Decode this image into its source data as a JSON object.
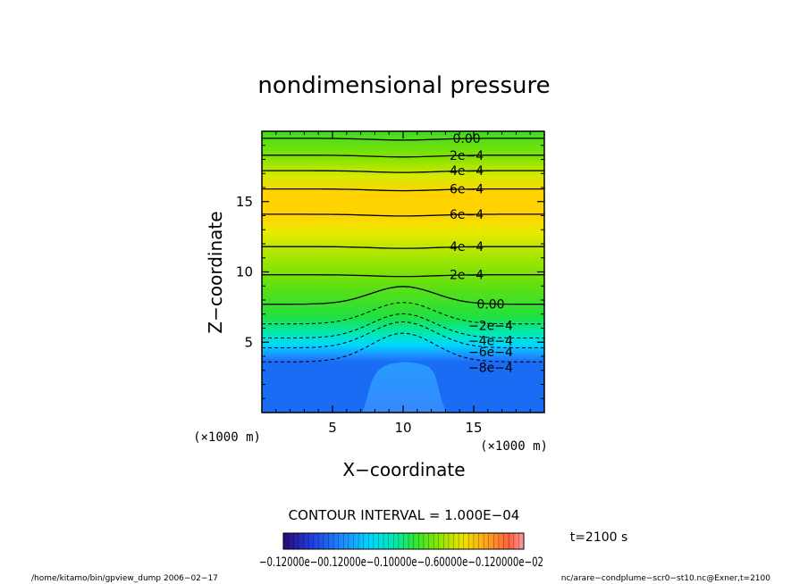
{
  "chart_data": {
    "type": "heatmap",
    "title": "nondimensional pressure",
    "xlabel": "X−coordinate",
    "ylabel": "Z−coordinate",
    "x_unit": "(×1000 m)",
    "y_unit": "(×1000 m)",
    "xlim": [
      0,
      20
    ],
    "ylim": [
      0,
      20
    ],
    "x_ticks": [
      5,
      10,
      15
    ],
    "y_ticks": [
      5,
      10,
      15
    ],
    "contour_interval": "CONTOUR INTERVAL = 1.000E−04",
    "time_label": "t=2100 s",
    "colorbar_labels": "−0.12000e−00.12000e−0.10000e−0.60000e−0.120000e−02",
    "contours": [
      {
        "z": 19.5,
        "label": "0.00"
      },
      {
        "z": 18.3,
        "label": "2e−4"
      },
      {
        "z": 17.2,
        "label": "4e−4"
      },
      {
        "z": 15.9,
        "label": "6e−4"
      },
      {
        "z": 14.1,
        "label": "6e−4"
      },
      {
        "z": 11.8,
        "label": "4e−4"
      },
      {
        "z": 9.8,
        "label": "2e−4"
      },
      {
        "z": 7.7,
        "label": "0.00"
      },
      {
        "z": 6.3,
        "label": "−2e−4"
      },
      {
        "z": 5.3,
        "label": "−4e−4"
      },
      {
        "z": 4.6,
        "label": "−6e−4"
      },
      {
        "z": 3.6,
        "label": "−8e−4"
      }
    ],
    "colormap": [
      "#2a0a7a",
      "#1f3fe0",
      "#1e8cff",
      "#00d7ff",
      "#00e8b0",
      "#30e630",
      "#90e600",
      "#f0e000",
      "#ffa020",
      "#ff6040",
      "#ff9aa0"
    ]
  },
  "footer": {
    "left": "/home/kitamo/bin/gpview_dump  2006−02−17",
    "right": "nc/arare−condplume−scr0−st10.nc@Exner,t=2100"
  }
}
